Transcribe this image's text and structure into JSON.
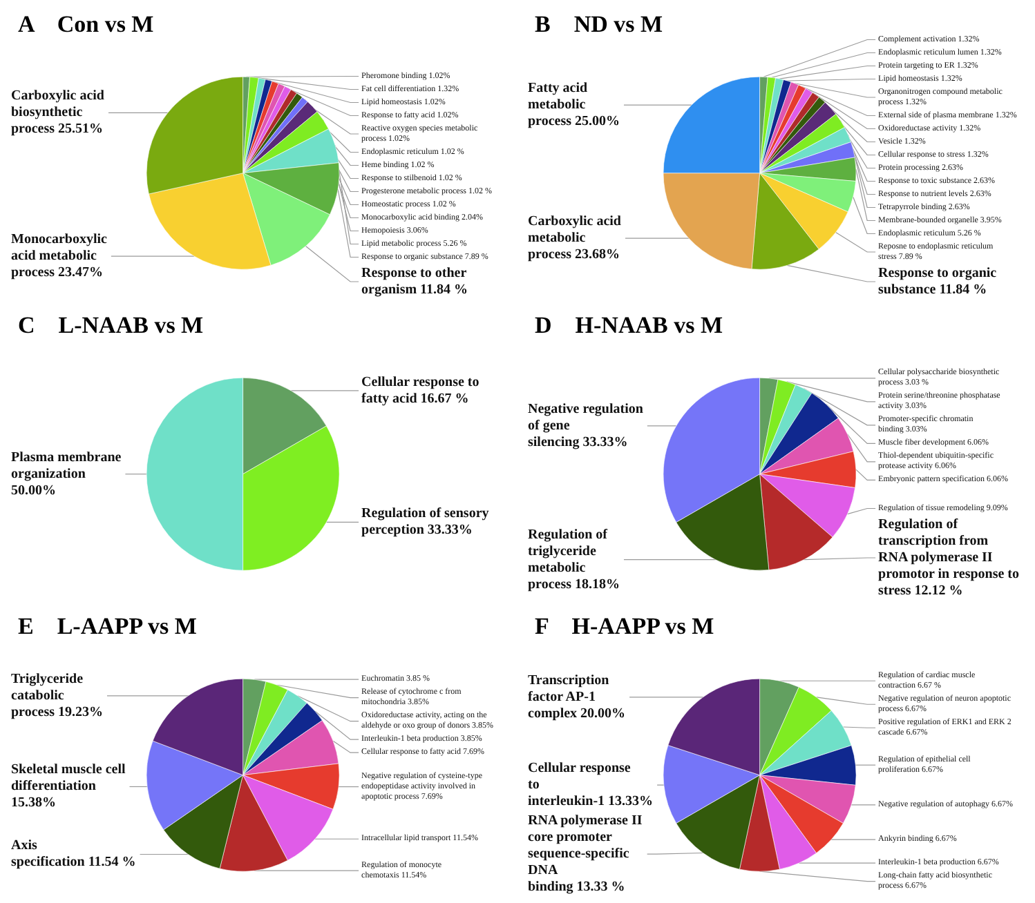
{
  "chart_data": [
    {
      "type": "pie",
      "title": "A    Con vs M",
      "categories": [
        "Pheromone binding",
        "Fat cell differentiation",
        "Lipid homeostasis",
        "Response to fatty acid",
        "Reactive oxygen species metabolic process",
        "Endoplasmic reticulum",
        "Heme binding",
        "Response to stilbenoid",
        "Progesterone metabolic process",
        "Homeostatic process",
        "Monocarboxylic acid binding",
        "Hemopoiesis",
        "Lipid metabolic process",
        "Response to organic substance",
        "Response to other organism",
        "Monocarboxylic acid metabolic process",
        "Carboxylic acid biosynthetic process"
      ],
      "values": [
        1.02,
        1.32,
        1.02,
        1.02,
        1.02,
        1.02,
        1.02,
        1.02,
        1.02,
        1.02,
        2.04,
        3.06,
        5.26,
        7.89,
        11.84,
        23.47,
        25.51
      ],
      "value_labels": [
        "1.02%",
        "1.32%",
        "1.02%",
        "1.02%",
        "1.02%",
        "1.02 %",
        "1.02 %",
        "1.02 %",
        "1.02 %",
        "1.02 %",
        "2.04%",
        "3.06%",
        "5.26 %",
        "7.89 %",
        "11.84 %",
        "23.47%",
        "25.51%"
      ],
      "colors": [
        "#62a060",
        "#7fec22",
        "#6fe0c8",
        "#10288f",
        "#e63b2e",
        "#e055b0",
        "#e05ce8",
        "#b02a2a",
        "#335a0c",
        "#7070f8",
        "#5a2a78",
        "#7fec22",
        "#6fe0c8",
        "#5eb040",
        "#7ff07a",
        "#f8d030",
        "#7aaa10"
      ]
    },
    {
      "type": "pie",
      "title": "B    ND vs M",
      "categories": [
        "Complement activation",
        "Endoplasmic reticulum lumen",
        "Protein targeting to ER",
        "Lipid homeostasis",
        "Organonitrogen compound metabolic process",
        "External side of plasma membrane",
        "Oxidoreductase activity",
        "Vesicle",
        "Cellular response to stress",
        "Protein processing",
        "Response to toxic substance",
        "Response to nutrient levels",
        "Tetrapyrrole binding",
        "Membrane-bounded organelle",
        "Endoplasmic reticulum",
        "Reposne to endoplasmic reticulum stress",
        "Response to organic substance",
        "Carboxylic acid metabolic process",
        "Fatty acid metabolic process"
      ],
      "values": [
        1.32,
        1.32,
        1.32,
        1.32,
        1.32,
        1.32,
        1.32,
        1.32,
        1.32,
        2.63,
        2.63,
        2.63,
        2.63,
        3.95,
        5.26,
        7.89,
        11.84,
        23.68,
        25.0
      ],
      "value_labels": [
        "1.32%",
        "1.32%",
        "1.32%",
        "1.32%",
        "1.32%",
        "1.32%",
        "1.32%",
        "1.32%",
        "1.32%",
        "2.63%",
        "2.63%",
        "2.63%",
        "2.63%",
        "3.95%",
        "5.26 %",
        "7.89 %",
        "11.84 %",
        "23.68%",
        "25.00%"
      ],
      "colors": [
        "#62a060",
        "#7fec22",
        "#6fe0c8",
        "#10288f",
        "#e055b0",
        "#e63b2e",
        "#e05ce8",
        "#b02a2a",
        "#335a0c",
        "#5a2a78",
        "#7fec22",
        "#6fe0c8",
        "#7070f8",
        "#5eb040",
        "#7ff07a",
        "#f8d030",
        "#7aaa10",
        "#e3a450",
        "#2f8ff0"
      ]
    },
    {
      "type": "pie",
      "title": "C    L-NAAB vs M",
      "categories": [
        "Cellular response to fatty acid",
        "Regulation of sensory perception",
        "Plasma membrane organization"
      ],
      "values": [
        16.67,
        33.33,
        50.0
      ],
      "value_labels": [
        "16.67 %",
        "33.33%",
        "50.00%"
      ],
      "colors": [
        "#62a060",
        "#7fee22",
        "#6fe0c8"
      ]
    },
    {
      "type": "pie",
      "title": "D    H-NAAB vs M",
      "categories": [
        "Cellular polysaccharide biosynthetic process",
        "Protein serine/threonine phosphatase activity",
        "Promoter-specific chromatin binding",
        "Muscle fiber development",
        "Thiol-dependent ubiquitin-specific protease activity",
        "Embryonic pattern specification",
        "Regulation of tissue remodeling",
        "Regulation of transcription from RNA polymerase II promotor in response to stress",
        "Regulation of triglyceride metabolic process",
        "Negative regulation of gene silencing"
      ],
      "values": [
        3.03,
        3.03,
        3.03,
        6.06,
        6.06,
        6.06,
        9.09,
        12.12,
        18.18,
        33.33
      ],
      "value_labels": [
        "3.03 %",
        "3.03%",
        "3.03%",
        "6.06%",
        "6.06%",
        "6.06%",
        "9.09%",
        "12.12 %",
        "18.18%",
        "33.33%"
      ],
      "colors": [
        "#62a060",
        "#7fec22",
        "#6fe0c8",
        "#10288f",
        "#e055b0",
        "#e63b2e",
        "#e05ce8",
        "#b52a2a",
        "#335a0c",
        "#7575f8"
      ]
    },
    {
      "type": "pie",
      "title": "E    L-AAPP vs M",
      "categories": [
        "Euchromatin",
        "Release of cytochrome c from mitochondria",
        "Oxidoreductase activity, acting on the aldehyde or oxo group of donors",
        "Interleukin-1 beta production",
        "Cellular response to fatty acid",
        "Negative regulation of cysteine-type endopeptidase activity involved in apoptotic process",
        "Intracellular lipid transport",
        "Regulation of monocyte chemotaxis",
        "Axis specification",
        "Skeletal muscle cell differentiation",
        "Triglyceride catabolic process"
      ],
      "values": [
        3.85,
        3.85,
        3.85,
        3.85,
        7.69,
        7.69,
        11.54,
        11.54,
        11.54,
        15.38,
        19.23
      ],
      "value_labels": [
        "3.85 %",
        "3.85%",
        "3.85%",
        "3.85%",
        "7.69%",
        "7.69%",
        "11.54%",
        "11.54%",
        "11.54 %",
        "15.38%",
        "19.23%"
      ],
      "colors": [
        "#62a060",
        "#7fec22",
        "#6fe0c8",
        "#10288f",
        "#e055b0",
        "#e63b2e",
        "#e05ce8",
        "#b52a2a",
        "#335a0c",
        "#7575f8",
        "#5a2678"
      ]
    },
    {
      "type": "pie",
      "title": "F    H-AAPP vs M",
      "categories": [
        "Regulation of cardiac muscle contraction",
        "Negative regulation of neuron apoptotic process",
        "Positive regulation of ERK1 and ERK 2 cascade",
        "Regulation of epithelial cell proliferation",
        "Negative regulation of autophagy",
        "Ankyrin binding",
        "Interleukin-1 beta production",
        "Long-chain fatty acid biosynthetic process",
        "RNA polymerase II core promoter sequence-specific DNA binding",
        "Cellular response to interleukin-1",
        "Transcription factor AP-1 complex"
      ],
      "values": [
        6.67,
        6.67,
        6.67,
        6.67,
        6.67,
        6.67,
        6.67,
        6.67,
        13.33,
        13.33,
        20.0
      ],
      "value_labels": [
        "6.67 %",
        "6.67%",
        "6.67%",
        "6.67%",
        "6.67%",
        "6.67%",
        "6.67%",
        "6.67%",
        "13.33 %",
        "13.33%",
        "20.00%"
      ],
      "colors": [
        "#62a060",
        "#7fec22",
        "#6fe0c8",
        "#10288f",
        "#e055b0",
        "#e63b2e",
        "#e05ce8",
        "#b52a2a",
        "#335a0c",
        "#7575f8",
        "#5a2678"
      ]
    }
  ]
}
